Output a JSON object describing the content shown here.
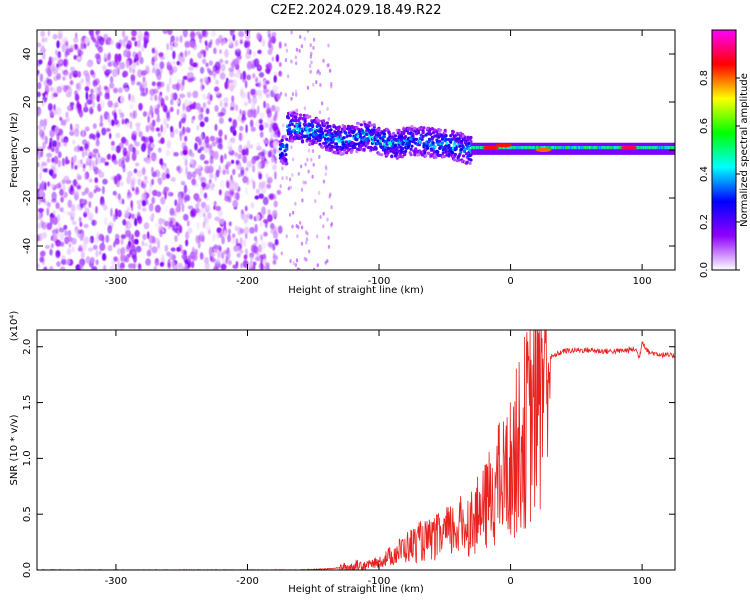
{
  "title": "C2E2.2024.029.18.49.R22",
  "chart_data": [
    {
      "type": "heatmap",
      "xlabel": "Height of straight line (km)",
      "ylabel": "Frequency (Hz)",
      "xlim": [
        -360,
        125
      ],
      "ylim": [
        -50,
        50
      ],
      "x_ticks": [
        -300,
        -200,
        -100,
        0,
        100
      ],
      "x_tick_labels": [
        "-300",
        "-200",
        "-100",
        "0",
        "100"
      ],
      "y_ticks": [
        -40,
        -20,
        0,
        20,
        40
      ],
      "y_tick_labels": [
        "-40",
        "-20",
        "0",
        "20",
        "40"
      ],
      "colorbar": {
        "label": "Normalized spectral amplitude",
        "range": [
          0,
          1
        ],
        "ticks": [
          0.0,
          0.2,
          0.4,
          0.6,
          0.8
        ],
        "tick_labels": [
          "0.0",
          "0.2",
          "0.4",
          "0.6",
          "0.8"
        ],
        "colors": [
          "#ffffff",
          "#8f00ff",
          "#0000ff",
          "#00ffff",
          "#00ff00",
          "#ffff00",
          "#ff0000",
          "#ff00ff"
        ]
      },
      "regions": [
        {
          "x_range": [
            -360,
            -175
          ],
          "freq_range": [
            -50,
            50
          ],
          "amplitude": 0.1
        },
        {
          "x_range": [
            -175,
            -30
          ],
          "center_freq_points": [
            [
              -170,
              10
            ],
            [
              -150,
              8
            ],
            [
              -130,
              4
            ],
            [
              -110,
              6
            ],
            [
              -90,
              2
            ],
            [
              -75,
              4
            ],
            [
              -60,
              3
            ],
            [
              -45,
              2
            ],
            [
              -30,
              0
            ]
          ],
          "half_width_hz": 6,
          "amplitude": 0.25
        },
        {
          "x_range": [
            -30,
            125
          ],
          "freq_range": [
            -2,
            3
          ],
          "center_freq": 1,
          "amplitude": 0.45
        }
      ],
      "peaks": [
        {
          "x": -15,
          "freq": 1,
          "amplitude": 0.85
        },
        {
          "x": -5,
          "freq": 2,
          "amplitude": 0.85
        },
        {
          "x": 25,
          "freq": 0,
          "amplitude": 0.8
        },
        {
          "x": 90,
          "freq": 1,
          "amplitude": 0.9
        }
      ]
    },
    {
      "type": "line",
      "xlabel": "Height of straight line (km)",
      "ylabel": "SNR (10 * v/v)",
      "y_scale_label": "(x10⁴)",
      "xlim": [
        -360,
        125
      ],
      "ylim": [
        0,
        2.15
      ],
      "x_ticks": [
        -300,
        -200,
        -100,
        0,
        100
      ],
      "x_tick_labels": [
        "-300",
        "-200",
        "-100",
        "0",
        "100"
      ],
      "y_ticks": [
        0,
        0.5,
        1.0,
        1.5,
        2.0
      ],
      "y_tick_labels": [
        "0.0",
        "0.5",
        "1.0",
        "1.5",
        "2.0"
      ],
      "color": "#e8221f",
      "series": [
        {
          "x": [
            -360,
            -300,
            -200,
            -160,
            -140,
            -130,
            -120,
            -110,
            -100,
            -90,
            -80,
            -70,
            -60,
            -50,
            -40,
            -30,
            -20,
            -15,
            -10,
            -5,
            0,
            5,
            10,
            15,
            20,
            25,
            30,
            40,
            50,
            60,
            70,
            80,
            90,
            95,
            98,
            100,
            105,
            110,
            115,
            120,
            125
          ],
          "y": [
            0.0,
            0.0,
            0.0,
            0.0,
            0.01,
            0.02,
            0.03,
            0.05,
            0.08,
            0.15,
            0.22,
            0.28,
            0.3,
            0.36,
            0.42,
            0.48,
            0.6,
            0.75,
            0.85,
            0.9,
            1.0,
            1.2,
            1.35,
            1.5,
            1.75,
            1.85,
            1.9,
            1.96,
            1.97,
            1.97,
            1.96,
            1.96,
            1.97,
            1.98,
            1.9,
            2.05,
            1.95,
            1.94,
            1.93,
            1.92,
            1.92
          ]
        }
      ]
    }
  ]
}
